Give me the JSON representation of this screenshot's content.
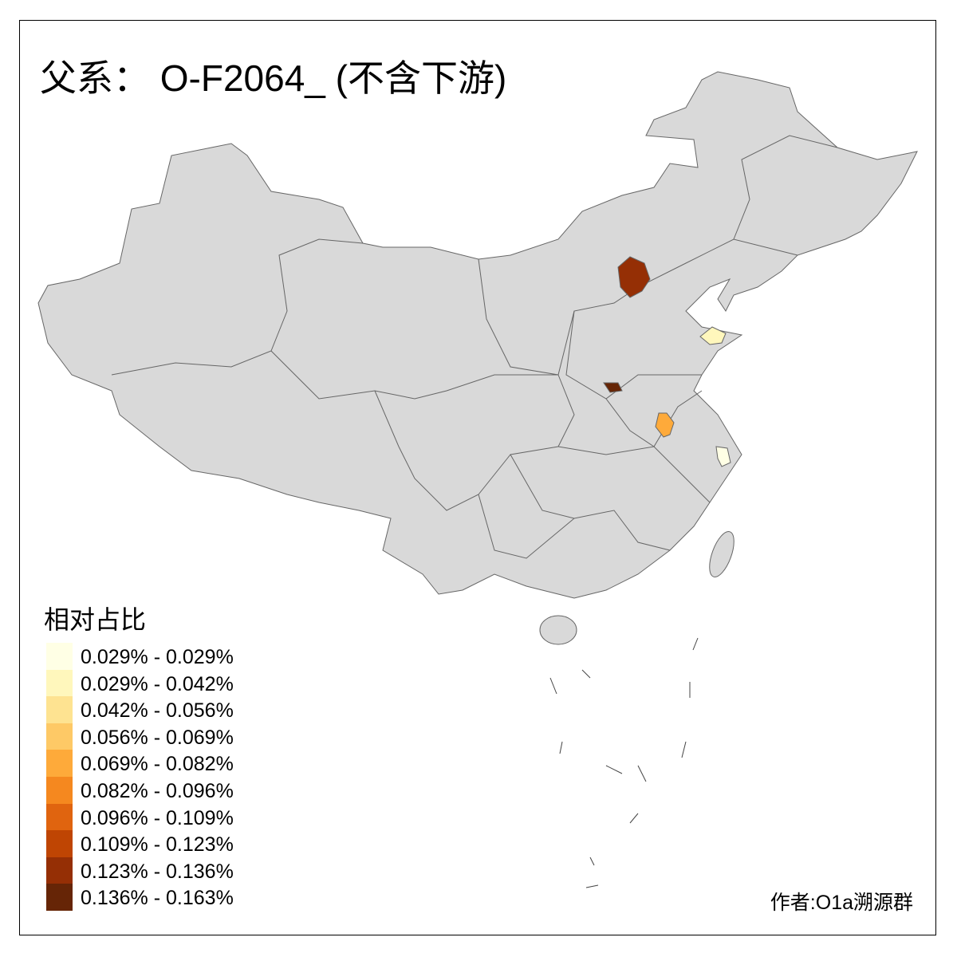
{
  "title": "父系： O-F2064_ (不含下游)",
  "legend": {
    "title": "相对占比",
    "items": [
      {
        "label": "0.029% - 0.029%",
        "color": "#FFFFE5"
      },
      {
        "label": "0.029% - 0.042%",
        "color": "#FFF7BC"
      },
      {
        "label": "0.042% - 0.056%",
        "color": "#FEE391"
      },
      {
        "label": "0.056% - 0.069%",
        "color": "#FEC966"
      },
      {
        "label": "0.069% - 0.082%",
        "color": "#FEAA3A"
      },
      {
        "label": "0.082% - 0.096%",
        "color": "#F5881F"
      },
      {
        "label": "0.096% - 0.109%",
        "color": "#E0640F"
      },
      {
        "label": "0.109% - 0.123%",
        "color": "#BF4503"
      },
      {
        "label": "0.123% - 0.136%",
        "color": "#952F05"
      },
      {
        "label": "0.136% - 0.163%",
        "color": "#662506"
      }
    ]
  },
  "map": {
    "base_color": "#D9D9D9",
    "border_color": "#666666",
    "highlighted_regions": [
      {
        "class": 8,
        "color": "#952F05"
      },
      {
        "class": 9,
        "color": "#662506"
      },
      {
        "class": 4,
        "color": "#FEAA3A"
      },
      {
        "class": 1,
        "color": "#FFF7BC"
      },
      {
        "class": 0,
        "color": "#FFFFE5"
      }
    ]
  },
  "credit": "作者:O1a溯源群"
}
